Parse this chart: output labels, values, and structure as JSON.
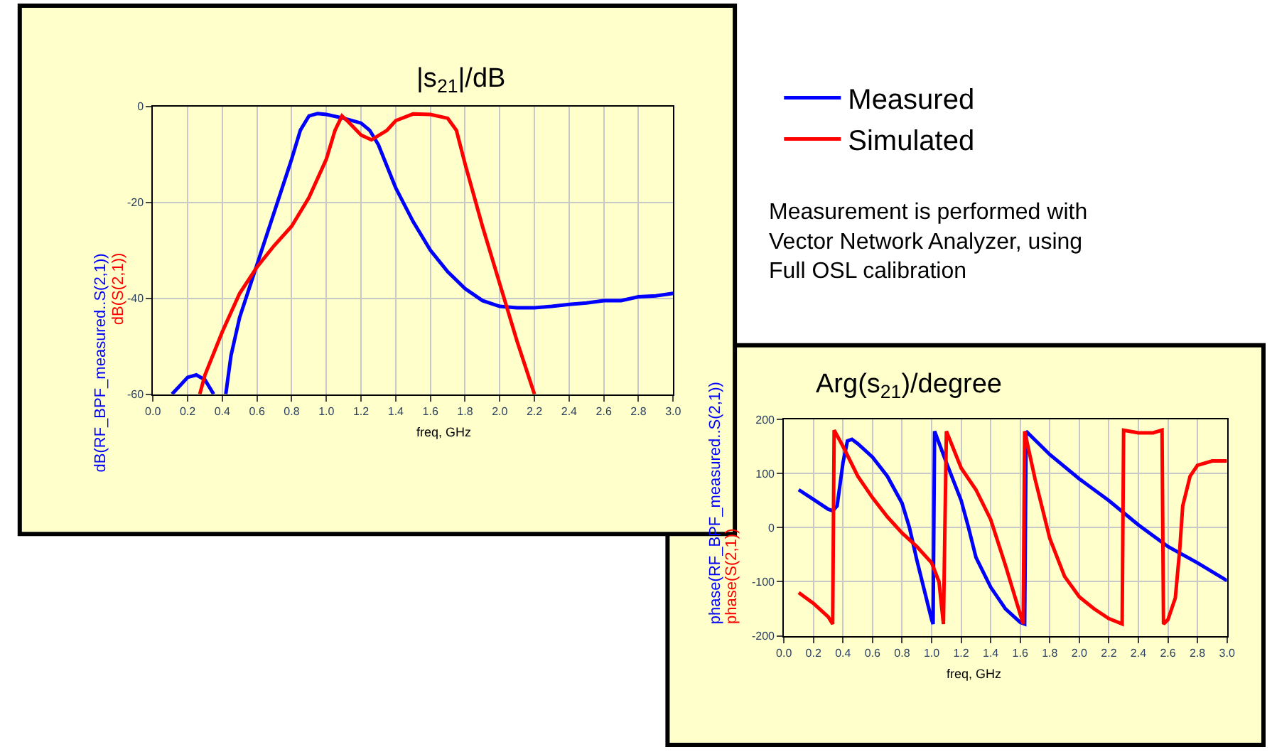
{
  "chart_data": [
    {
      "type": "line",
      "title": "|s$_{21}$|/dB",
      "xlabel": "freq, GHz",
      "ylabel": [
        "dB(RF_BPF_measured..S(2,1))",
        "dB(S(2,1))"
      ],
      "xlim": [
        0,
        3.0
      ],
      "ylim": [
        -60,
        0
      ],
      "xticks": [
        {
          "value": 0,
          "label": "0.0"
        },
        {
          "value": 0.2,
          "label": "0.2"
        },
        {
          "value": 0.4,
          "label": "0.4"
        },
        {
          "value": 0.6,
          "label": "0.6"
        },
        {
          "value": 0.8,
          "label": "0.8"
        },
        {
          "value": 1.0,
          "label": "1.0"
        },
        {
          "value": 1.2,
          "label": "1.2"
        },
        {
          "value": 1.4,
          "label": "1.4"
        },
        {
          "value": 1.6,
          "label": "1.6"
        },
        {
          "value": 1.8,
          "label": "1.8"
        },
        {
          "value": 2.0,
          "label": "2.0"
        },
        {
          "value": 2.2,
          "label": "2.2"
        },
        {
          "value": 2.4,
          "label": "2.4"
        },
        {
          "value": 2.6,
          "label": "2.6"
        },
        {
          "value": 2.8,
          "label": "2.8"
        },
        {
          "value": 3.0,
          "label": "3.0"
        }
      ],
      "yticks": [
        -60,
        -40,
        -20,
        0
      ],
      "grid": true,
      "legend": "right",
      "annotations": [
        "Measurement is performed with Vector Network Analyzer, using Full OSL calibration"
      ],
      "series": [
        {
          "name": "Measured",
          "color": "#0000ff",
          "x": [
            0.11,
            0.2,
            0.25,
            0.3,
            0.35,
            null,
            0.42,
            0.45,
            0.5,
            0.6,
            0.7,
            0.8,
            0.85,
            0.9,
            0.95,
            1.0,
            1.1,
            1.2,
            1.25,
            1.3,
            1.4,
            1.5,
            1.6,
            1.7,
            1.8,
            1.9,
            2.0,
            2.1,
            2.2,
            2.3,
            2.4,
            2.5,
            2.6,
            2.7,
            2.8,
            2.9,
            3.0
          ],
          "values": [
            -60,
            -56.5,
            -56,
            -57,
            -60,
            null,
            -60,
            -52,
            -44,
            -33,
            -22,
            -11,
            -5,
            -2,
            -1.5,
            -1.7,
            -2.5,
            -3.5,
            -5,
            -8,
            -17,
            -24,
            -30,
            -34.5,
            -38,
            -40.5,
            -41.7,
            -42,
            -42,
            -41.7,
            -41.3,
            -41,
            -40.5,
            -40.5,
            -39.7,
            -39.5,
            -39
          ]
        },
        {
          "name": "Simulated",
          "color": "#ff0000",
          "x": [
            0.27,
            0.3,
            0.4,
            0.5,
            0.6,
            0.7,
            0.8,
            0.9,
            1.0,
            1.05,
            1.09,
            1.12,
            1.2,
            1.26,
            1.35,
            1.4,
            1.5,
            1.6,
            1.7,
            1.75,
            1.8,
            1.9,
            2.0,
            2.1,
            2.2
          ],
          "values": [
            -60,
            -56,
            -47,
            -39,
            -33.5,
            -29,
            -25,
            -19,
            -11,
            -5,
            -2,
            -3,
            -6,
            -7,
            -5,
            -3,
            -1.6,
            -1.7,
            -2.5,
            -5,
            -12,
            -25,
            -37,
            -49,
            -60
          ]
        }
      ]
    },
    {
      "type": "line",
      "title": "Arg(s$_{21}$)/degree",
      "xlabel": "freq, GHz",
      "ylabel": [
        "phase(RF_BPF_measured..S(2,1))",
        "phase(S(2,1))"
      ],
      "xlim": [
        0,
        3.0
      ],
      "ylim": [
        -200,
        200
      ],
      "xticks": [
        {
          "value": 0,
          "label": "0.0"
        },
        {
          "value": 0.2,
          "label": "0.2"
        },
        {
          "value": 0.4,
          "label": "0.4"
        },
        {
          "value": 0.6,
          "label": "0.6"
        },
        {
          "value": 0.8,
          "label": "0.8"
        },
        {
          "value": 1.0,
          "label": "1.0"
        },
        {
          "value": 1.2,
          "label": "1.2"
        },
        {
          "value": 1.4,
          "label": "1.4"
        },
        {
          "value": 1.6,
          "label": "1.6"
        },
        {
          "value": 1.8,
          "label": "1.8"
        },
        {
          "value": 2.0,
          "label": "2.0"
        },
        {
          "value": 2.2,
          "label": "2.2"
        },
        {
          "value": 2.4,
          "label": "2.4"
        },
        {
          "value": 2.6,
          "label": "2.6"
        },
        {
          "value": 2.8,
          "label": "2.8"
        },
        {
          "value": 3.0,
          "label": "3.0"
        }
      ],
      "yticks": [
        -200,
        -100,
        0,
        100,
        200
      ],
      "grid": true,
      "series": [
        {
          "color": "#0000ff",
          "x": [
            0.1,
            0.2,
            0.3,
            0.33,
            0.36,
            0.4,
            0.43,
            0.46,
            0.5,
            0.6,
            0.7,
            0.8,
            0.85,
            0.9,
            0.95,
            1.0,
            1.01,
            1.02,
            1.1,
            1.2,
            1.25,
            1.3,
            1.4,
            1.5,
            1.6,
            1.63,
            1.64,
            1.8,
            2.0,
            2.2,
            2.4,
            2.6,
            2.8,
            3.0
          ],
          "values": [
            70,
            52,
            34,
            31,
            40,
            120,
            160,
            163,
            155,
            130,
            95,
            45,
            0,
            -60,
            -115,
            -170,
            -178,
            178,
            120,
            50,
            0,
            -55,
            -110,
            -150,
            -175,
            -178,
            178,
            135,
            90,
            50,
            5,
            -35,
            -65,
            -98
          ]
        },
        {
          "color": "#ff0000",
          "x": [
            0.1,
            0.2,
            0.3,
            0.33,
            0.34,
            0.4,
            0.5,
            0.6,
            0.7,
            0.8,
            0.9,
            1.0,
            1.05,
            1.08,
            1.1,
            1.2,
            1.3,
            1.4,
            1.5,
            1.6,
            1.62,
            1.63,
            1.7,
            1.8,
            1.9,
            2.0,
            2.1,
            2.2,
            2.29,
            2.3,
            2.4,
            2.5,
            2.56,
            2.57,
            2.6,
            2.65,
            2.68,
            2.7,
            2.75,
            2.8,
            2.9,
            3.0
          ],
          "values": [
            -120,
            -140,
            -165,
            -178,
            180,
            150,
            95,
            55,
            20,
            -10,
            -35,
            -65,
            -100,
            -178,
            178,
            110,
            70,
            15,
            -70,
            -160,
            -178,
            178,
            90,
            -20,
            -90,
            -128,
            -150,
            -168,
            -178,
            180,
            175,
            175,
            180,
            -178,
            -170,
            -130,
            -40,
            40,
            95,
            115,
            123,
            123
          ]
        }
      ]
    }
  ]
}
